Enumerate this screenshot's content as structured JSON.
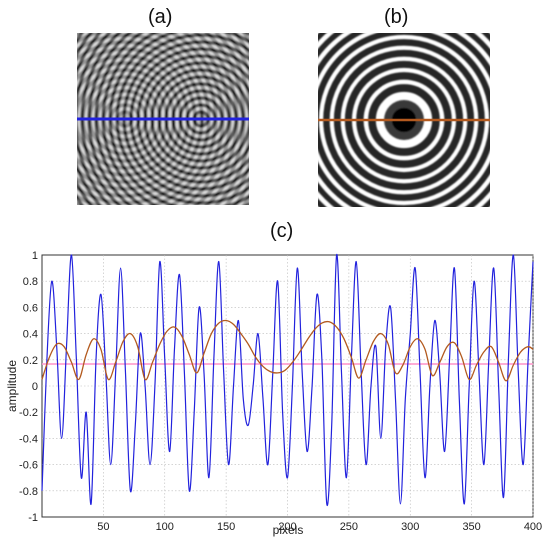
{
  "panels": {
    "a_label": "(a)",
    "b_label": "(b)",
    "c_label": "(c)"
  },
  "colors": {
    "blue": "#2222dd",
    "brown": "#b35a1f",
    "pink": "#ff99cc"
  },
  "chart_data": {
    "type": "line",
    "xlabel": "pixels",
    "ylabel": "amplitude",
    "xlim": [
      0,
      400
    ],
    "ylim": [
      -1,
      1
    ],
    "xticks": [
      50,
      100,
      150,
      200,
      250,
      300,
      350,
      400
    ],
    "yticks": [
      -1,
      -0.8,
      -0.6,
      -0.4,
      -0.2,
      0,
      0.2,
      0.4,
      0.6,
      0.8,
      1
    ],
    "grid": true,
    "series": [
      {
        "color": "#2222dd",
        "x": [
          0,
          4,
          8,
          12,
          16,
          20,
          24,
          28,
          32,
          36,
          40,
          44,
          48,
          52,
          56,
          60,
          64,
          68,
          72,
          76,
          80,
          84,
          88,
          92,
          96,
          100,
          104,
          108,
          112,
          116,
          120,
          124,
          128,
          132,
          136,
          140,
          144,
          148,
          152,
          156,
          160,
          164,
          168,
          172,
          176,
          180,
          184,
          188,
          192,
          196,
          200,
          204,
          208,
          212,
          216,
          220,
          224,
          228,
          232,
          236,
          240,
          244,
          248,
          252,
          256,
          260,
          264,
          268,
          272,
          276,
          280,
          284,
          288,
          292,
          296,
          300,
          304,
          308,
          312,
          316,
          320,
          324,
          328,
          332,
          336,
          340,
          344,
          348,
          352,
          356,
          360,
          364,
          368,
          372,
          376,
          380,
          384,
          388,
          392,
          396,
          400
        ],
        "y": [
          -0.8,
          0.2,
          0.8,
          0.3,
          -0.4,
          0.3,
          1.0,
          0.2,
          -0.7,
          -0.2,
          -0.9,
          0.2,
          0.7,
          0.1,
          -0.6,
          0.1,
          0.9,
          0.1,
          -0.8,
          -0.3,
          0.4,
          0.0,
          -0.6,
          0.0,
          0.95,
          0.2,
          -0.5,
          0.3,
          0.85,
          0.1,
          -0.8,
          -0.2,
          0.6,
          0.1,
          -0.7,
          0.2,
          0.95,
          0.1,
          -0.6,
          0.0,
          0.5,
          -0.1,
          -0.3,
          0.0,
          0.4,
          -0.1,
          -0.6,
          0.1,
          0.8,
          -0.2,
          -0.7,
          0.0,
          0.9,
          0.1,
          -0.5,
          0.0,
          0.7,
          0.2,
          -0.9,
          -0.3,
          1.0,
          0.1,
          -0.7,
          0.2,
          0.95,
          0.1,
          -0.6,
          0.0,
          0.3,
          -0.4,
          0.3,
          0.6,
          -0.1,
          -0.9,
          -0.1,
          0.4,
          0.9,
          0.1,
          -0.7,
          0.0,
          0.5,
          0.1,
          -0.5,
          0.2,
          0.9,
          -0.1,
          -0.9,
          0.0,
          0.8,
          0.1,
          -0.6,
          0.2,
          0.9,
          0.0,
          -0.85,
          0.2,
          1.0,
          0.1,
          -0.6,
          0.2,
          0.95
        ]
      },
      {
        "color": "#b35a1f",
        "x": [
          0,
          6,
          12,
          18,
          24,
          30,
          36,
          42,
          48,
          54,
          60,
          66,
          72,
          78,
          84,
          90,
          96,
          102,
          108,
          114,
          120,
          126,
          132,
          138,
          144,
          150,
          156,
          162,
          168,
          174,
          180,
          186,
          192,
          198,
          204,
          210,
          216,
          222,
          228,
          234,
          240,
          246,
          252,
          258,
          264,
          270,
          276,
          282,
          288,
          294,
          300,
          306,
          312,
          318,
          324,
          330,
          336,
          342,
          348,
          354,
          360,
          366,
          372,
          378,
          384,
          390,
          396,
          400
        ],
        "y": [
          0.05,
          0.22,
          0.32,
          0.3,
          0.18,
          0.05,
          0.24,
          0.36,
          0.28,
          0.05,
          0.18,
          0.34,
          0.4,
          0.3,
          0.05,
          0.18,
          0.32,
          0.42,
          0.45,
          0.38,
          0.24,
          0.1,
          0.25,
          0.4,
          0.48,
          0.5,
          0.47,
          0.4,
          0.32,
          0.22,
          0.15,
          0.11,
          0.1,
          0.12,
          0.18,
          0.26,
          0.35,
          0.43,
          0.48,
          0.49,
          0.45,
          0.36,
          0.22,
          0.06,
          0.2,
          0.34,
          0.4,
          0.32,
          0.1,
          0.16,
          0.3,
          0.36,
          0.28,
          0.08,
          0.18,
          0.3,
          0.33,
          0.22,
          0.05,
          0.16,
          0.26,
          0.3,
          0.18,
          0.04,
          0.16,
          0.26,
          0.3,
          0.28
        ]
      }
    ]
  }
}
